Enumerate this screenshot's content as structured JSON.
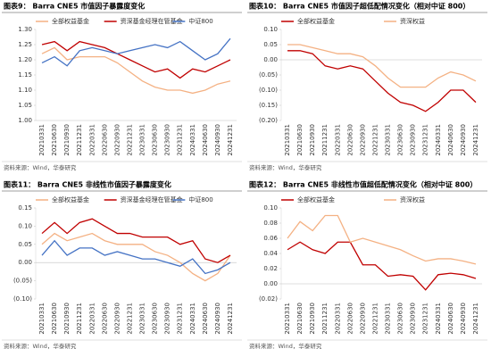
{
  "chart_data": [
    {
      "type": "line",
      "title": "图表9： Barra CNE5 市值因子暴露度变化",
      "source": "资料来源：Wind，华泰研究",
      "categories": [
        "20210331",
        "20210630",
        "20210930",
        "20211231",
        "20220331",
        "20220630",
        "20220930",
        "20221231",
        "20230331",
        "20230630",
        "20230930",
        "20231231",
        "20240331",
        "20240630",
        "20240930",
        "20241231"
      ],
      "series": [
        {
          "name": "全部权益基金",
          "color": "#f4b183",
          "values": [
            1.22,
            1.24,
            1.2,
            1.21,
            1.21,
            1.21,
            1.19,
            1.16,
            1.13,
            1.11,
            1.1,
            1.1,
            1.09,
            1.1,
            1.12,
            1.13
          ]
        },
        {
          "name": "资深基金经理在管基金",
          "color": "#c00000",
          "values": [
            1.25,
            1.26,
            1.23,
            1.26,
            1.25,
            1.24,
            1.22,
            1.2,
            1.18,
            1.16,
            1.17,
            1.14,
            1.17,
            1.16,
            1.18,
            1.2
          ]
        },
        {
          "name": "中证800",
          "color": "#4472c4",
          "values": [
            1.19,
            1.21,
            1.18,
            1.23,
            1.24,
            1.23,
            1.22,
            1.23,
            1.24,
            1.25,
            1.24,
            1.26,
            1.23,
            1.2,
            1.22,
            1.27
          ]
        }
      ],
      "ylim": [
        1.0,
        1.3
      ],
      "yticks": [
        {
          "value": 1.0,
          "label": "1.00"
        },
        1.05,
        {
          "value": 1.1,
          "label": "1.10"
        },
        1.15,
        {
          "value": 1.2,
          "label": "1.20"
        },
        1.25,
        {
          "value": 1.3,
          "label": "1.30"
        }
      ]
    },
    {
      "type": "line",
      "title": "图表10： Barra CNE5 市值因子超低配情况变化（相对中证 800）",
      "source": "资料来源：Wind，华泰研究",
      "categories": [
        "20210331",
        "20210630",
        "20210930",
        "20211231",
        "20220331",
        "20220630",
        "20220930",
        "20221231",
        "20230331",
        "20230630",
        "20230930",
        "20231231",
        "20240331",
        "20240630",
        "20240930",
        "20241231"
      ],
      "series": [
        {
          "name": "全部权益基金",
          "color": "#c00000",
          "values": [
            0.03,
            0.03,
            0.02,
            -0.02,
            -0.03,
            -0.02,
            -0.03,
            -0.07,
            -0.11,
            -0.14,
            -0.15,
            -0.17,
            -0.14,
            -0.1,
            -0.1,
            -0.14
          ]
        },
        {
          "name": "资深权益",
          "color": "#f4b183",
          "values": [
            0.05,
            0.05,
            0.04,
            0.03,
            0.02,
            0.02,
            0.01,
            -0.02,
            -0.06,
            -0.09,
            -0.09,
            -0.09,
            -0.06,
            -0.04,
            -0.05,
            -0.07
          ]
        }
      ],
      "ylim": [
        -0.2,
        0.1
      ],
      "yticks": [
        {
          "value": -0.2,
          "label": "(0.20)"
        },
        {
          "value": -0.15,
          "label": "(0.15)"
        },
        {
          "value": -0.1,
          "label": "(0.10)"
        },
        {
          "value": -0.05,
          "label": "(0.05)"
        },
        {
          "value": 0,
          "label": "0.00"
        },
        0.05,
        {
          "value": 0.1,
          "label": "0.10"
        }
      ]
    },
    {
      "type": "line",
      "title": "图表11： Barra CNE5 非线性市值因子暴露度变化",
      "source": "资料来源：Wind，华泰研究",
      "categories": [
        "20210331",
        "20210630",
        "20210930",
        "20211231",
        "20220331",
        "20220630",
        "20220930",
        "20221231",
        "20230331",
        "20230630",
        "20230930",
        "20231231",
        "20240331",
        "20240630",
        "20240930",
        "20241231"
      ],
      "series": [
        {
          "name": "全部权益基金",
          "color": "#f4b183",
          "values": [
            0.05,
            0.08,
            0.06,
            0.07,
            0.08,
            0.06,
            0.05,
            0.05,
            0.05,
            0.03,
            0.02,
            0.0,
            -0.03,
            -0.05,
            -0.03,
            0.02
          ]
        },
        {
          "name": "资深基金经理在管基金",
          "color": "#c00000",
          "values": [
            0.08,
            0.11,
            0.08,
            0.11,
            0.12,
            0.1,
            0.08,
            0.08,
            0.07,
            0.07,
            0.07,
            0.05,
            0.06,
            0.01,
            0.0,
            0.02
          ]
        },
        {
          "name": "中证800",
          "color": "#4472c4",
          "values": [
            0.02,
            0.06,
            0.02,
            0.04,
            0.04,
            0.02,
            0.03,
            0.02,
            0.01,
            0.01,
            0.0,
            -0.01,
            0.01,
            -0.03,
            -0.02,
            0.0
          ]
        }
      ],
      "ylim": [
        -0.1,
        0.15
      ],
      "yticks": [
        {
          "value": -0.1,
          "label": "(0.10)"
        },
        {
          "value": -0.05,
          "label": "(0.05)"
        },
        {
          "value": 0,
          "label": "0.00"
        },
        0.05,
        {
          "value": 0.1,
          "label": "0.10"
        },
        0.15
      ]
    },
    {
      "type": "line",
      "title": "图表12： Barra CNE5 非线性市值超低配情况变化（相对中证 800）",
      "source": "资料来源：Wind，华泰研究",
      "categories": [
        "20210331",
        "20210630",
        "20210930",
        "20211231",
        "20220331",
        "20220630",
        "20220930",
        "20221231",
        "20230331",
        "20230630",
        "20230930",
        "20231231",
        "20240331",
        "20240630",
        "20240930",
        "20241231"
      ],
      "series": [
        {
          "name": "全部权益基金",
          "color": "#c00000",
          "values": [
            0.045,
            0.055,
            0.045,
            0.04,
            0.055,
            0.055,
            0.025,
            0.025,
            0.01,
            0.012,
            0.01,
            -0.008,
            0.012,
            0.014,
            0.012,
            0.007
          ]
        },
        {
          "name": "资深权益",
          "color": "#f4b183",
          "values": [
            0.06,
            0.082,
            0.07,
            0.09,
            0.09,
            0.055,
            0.06,
            0.055,
            0.05,
            0.045,
            0.037,
            0.03,
            0.033,
            0.033,
            0.03,
            0.026
          ]
        }
      ],
      "ylim": [
        -0.02,
        0.1
      ],
      "yticks": [
        {
          "value": -0.02,
          "label": "(0.02)"
        },
        {
          "value": 0,
          "label": "0.00"
        },
        0.02,
        0.04,
        0.06,
        0.08,
        {
          "value": 0.1,
          "label": "0.10"
        }
      ]
    }
  ]
}
